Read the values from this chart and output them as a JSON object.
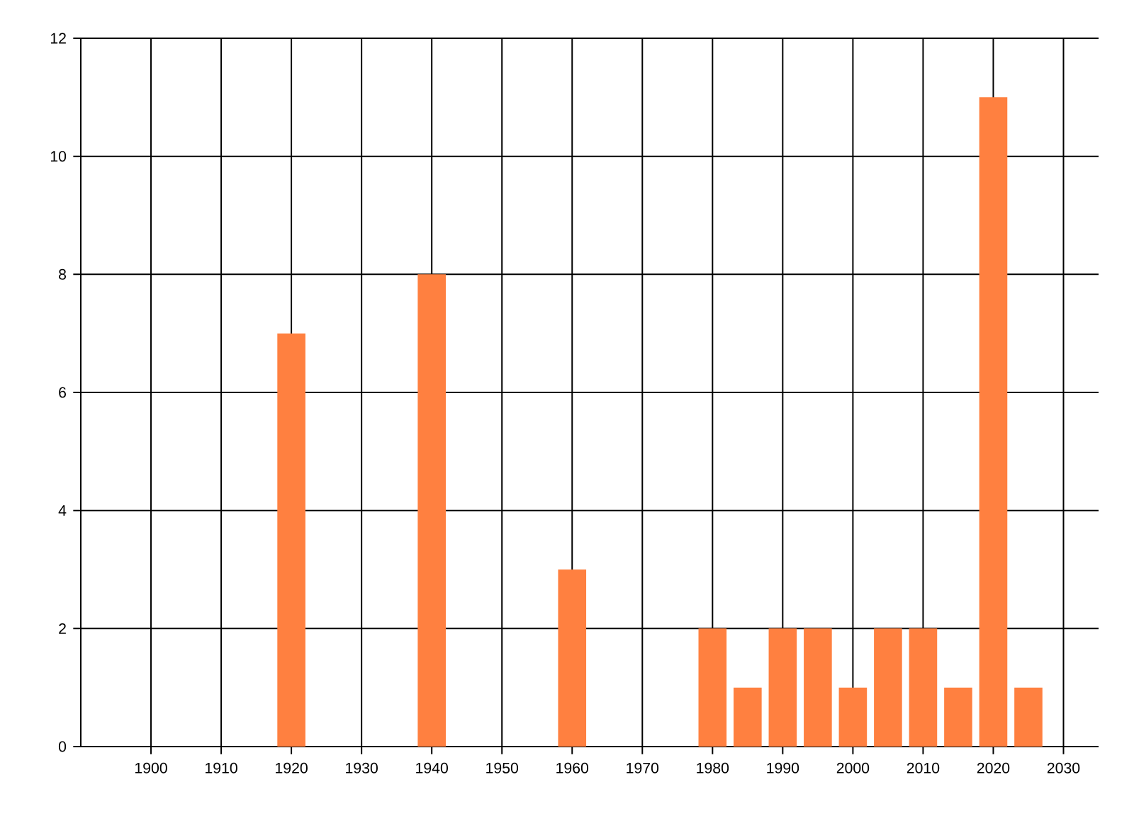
{
  "chart_data": {
    "type": "bar",
    "x": [
      1920,
      1940,
      1960,
      1980,
      1985,
      1990,
      1995,
      2000,
      2005,
      2010,
      2015,
      2020,
      2025
    ],
    "values": [
      7,
      8,
      3,
      2,
      1,
      2,
      2,
      1,
      2,
      2,
      1,
      11,
      1
    ],
    "color": "#ff8040",
    "xlim": [
      1890,
      2035
    ],
    "xticks": [
      1900,
      1910,
      1920,
      1930,
      1940,
      1950,
      1960,
      1970,
      1980,
      1990,
      2000,
      2010,
      2020,
      2030
    ],
    "ylim": [
      0,
      12
    ],
    "yticks": [
      0,
      2,
      4,
      6,
      8,
      10,
      12
    ],
    "grid": true
  }
}
